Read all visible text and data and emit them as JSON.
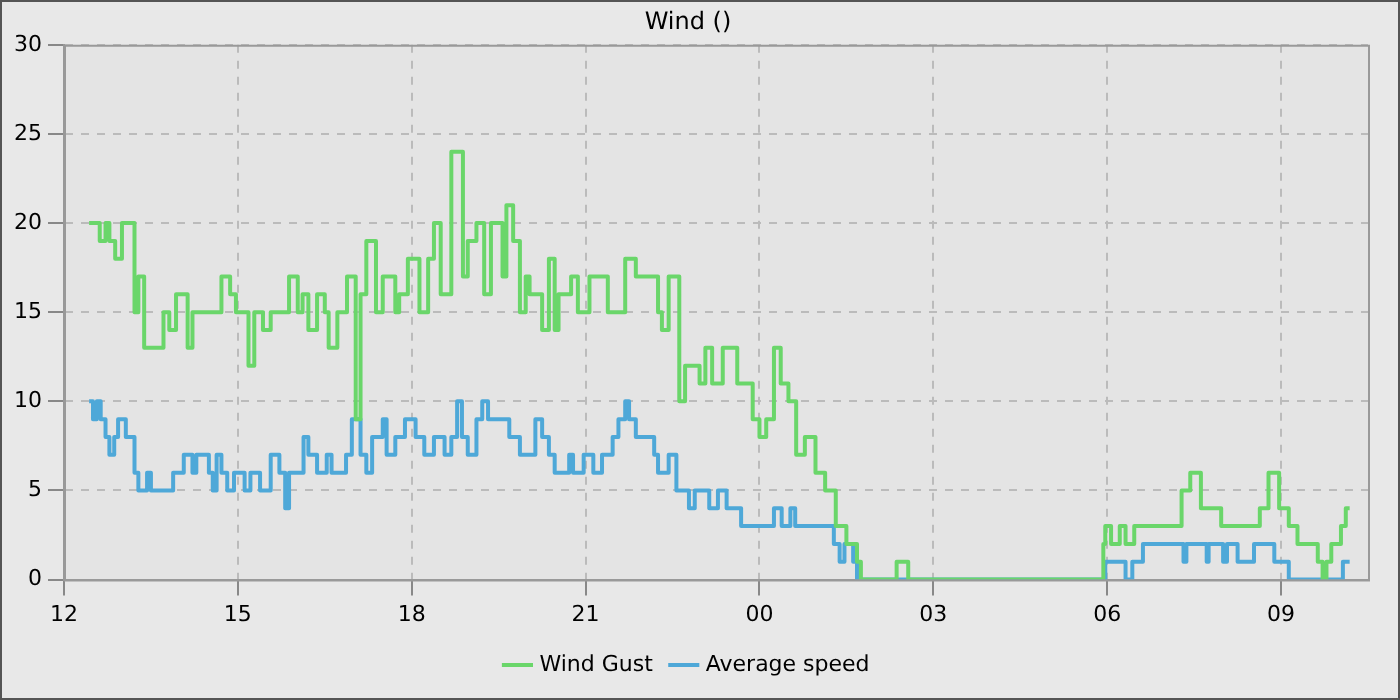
{
  "chart_data": {
    "type": "step",
    "title": "Wind ()",
    "xlim": [
      "--01-01T12:00",
      "--01-02T10:30"
    ],
    "ylim": [
      0,
      30
    ],
    "xticks": [
      {
        "value": "--01-01T12:00",
        "label": "12"
      },
      {
        "value": "--01-01T15:00",
        "label": "15"
      },
      {
        "value": "--01-01T18:00",
        "label": "18"
      },
      {
        "value": "--01-01T21:00",
        "label": "21"
      },
      {
        "value": "--01-02T00:00",
        "label": "00"
      },
      {
        "value": "--01-02T03:00",
        "label": "03"
      },
      {
        "value": "--01-02T06:00",
        "label": "06"
      },
      {
        "value": "--01-02T09:00",
        "label": "09"
      }
    ],
    "yticks": [
      0,
      5,
      10,
      15,
      20,
      25,
      30
    ],
    "grid": true,
    "legend": "bottom",
    "marker": "none",
    "line_style": "solid",
    "series": [
      {
        "name": "Wind Gust",
        "color": "#6ad66a",
        "x": [
          "--01-01T12:26",
          "--01-01T12:37",
          "--01-01T12:43",
          "--01-01T12:47",
          "--01-01T12:53",
          "--01-01T13:00",
          "--01-01T13:13",
          "--01-01T13:17",
          "--01-01T13:23",
          "--01-01T13:43",
          "--01-01T13:49",
          "--01-01T13:56",
          "--01-01T14:08",
          "--01-01T14:13",
          "--01-01T14:43",
          "--01-01T14:52",
          "--01-01T14:58",
          "--01-01T15:11",
          "--01-01T15:17",
          "--01-01T15:26",
          "--01-01T15:34",
          "--01-01T15:53",
          "--01-01T16:02",
          "--01-01T16:07",
          "--01-01T16:13",
          "--01-01T16:22",
          "--01-01T16:30",
          "--01-01T16:34",
          "--01-01T16:43",
          "--01-01T16:53",
          "--01-01T17:02",
          "--01-01T17:07",
          "--01-01T17:13",
          "--01-01T17:23",
          "--01-01T17:30",
          "--01-01T17:43",
          "--01-01T17:47",
          "--01-01T17:56",
          "--01-01T18:08",
          "--01-01T18:17",
          "--01-01T18:23",
          "--01-01T18:30",
          "--01-01T18:41",
          "--01-01T18:53",
          "--01-01T18:58",
          "--01-01T19:07",
          "--01-01T19:15",
          "--01-01T19:22",
          "--01-01T19:34",
          "--01-01T19:38",
          "--01-01T19:45",
          "--01-01T19:52",
          "--01-01T19:58",
          "--01-01T20:02",
          "--01-01T20:15",
          "--01-01T20:22",
          "--01-01T20:28",
          "--01-01T20:32",
          "--01-01T20:45",
          "--01-01T20:52",
          "--01-01T21:04",
          "--01-01T21:23",
          "--01-01T21:41",
          "--01-01T21:52",
          "--01-01T22:15",
          "--01-01T22:19",
          "--01-01T22:26",
          "--01-01T22:37",
          "--01-01T22:43",
          "--01-01T22:58",
          "--01-01T23:04",
          "--01-01T23:11",
          "--01-01T23:22",
          "--01-01T23:37",
          "--01-01T23:53",
          "--01-02T00:00",
          "--01-02T00:07",
          "--01-02T00:15",
          "--01-02T00:22",
          "--01-02T00:30",
          "--01-02T00:38",
          "--01-02T00:47",
          "--01-02T00:58",
          "--01-02T01:08",
          "--01-02T01:19",
          "--01-02T01:30",
          "--01-02T01:41",
          "--01-02T01:45",
          "--01-02T02:22",
          "--01-02T02:34",
          "--01-02T05:56",
          "--01-02T05:58",
          "--01-02T06:04",
          "--01-02T06:13",
          "--01-02T06:19",
          "--01-02T06:28",
          "--01-02T07:17",
          "--01-02T07:26",
          "--01-02T07:37",
          "--01-02T07:58",
          "--01-02T08:38",
          "--01-02T08:47",
          "--01-02T08:58",
          "--01-02T09:08",
          "--01-02T09:17",
          "--01-02T09:38",
          "--01-02T09:43",
          "--01-02T09:47",
          "--01-02T09:52",
          "--01-02T10:02",
          "--01-02T10:07",
          "--01-02T10:11"
        ],
        "values": [
          20,
          19,
          20,
          19,
          18,
          20,
          15,
          17,
          13,
          15,
          14,
          16,
          13,
          15,
          17,
          16,
          15,
          12,
          15,
          14,
          15,
          17,
          15,
          16,
          14,
          16,
          15,
          13,
          15,
          17,
          9,
          16,
          19,
          15,
          17,
          15,
          16,
          18,
          15,
          18,
          20,
          16,
          24,
          17,
          19,
          20,
          16,
          20,
          17,
          21,
          19,
          15,
          17,
          16,
          14,
          18,
          14,
          16,
          17,
          15,
          17,
          15,
          18,
          17,
          15,
          14,
          17,
          10,
          12,
          11,
          13,
          11,
          13,
          11,
          9,
          8,
          9,
          13,
          11,
          10,
          7,
          8,
          6,
          5,
          3,
          2,
          1,
          0,
          1,
          0,
          2,
          3,
          2,
          3,
          2,
          3,
          5,
          6,
          4,
          3,
          4,
          6,
          4,
          3,
          2,
          1,
          0,
          1,
          2,
          3,
          4,
          4
        ]
      },
      {
        "name": "Average speed",
        "color": "#4ea8d8",
        "x": [
          "--01-01T12:26",
          "--01-01T12:30",
          "--01-01T12:34",
          "--01-01T12:38",
          "--01-01T12:43",
          "--01-01T12:47",
          "--01-01T12:52",
          "--01-01T12:56",
          "--01-01T13:04",
          "--01-01T13:13",
          "--01-01T13:17",
          "--01-01T13:26",
          "--01-01T13:30",
          "--01-01T13:53",
          "--01-01T14:04",
          "--01-01T14:13",
          "--01-01T14:17",
          "--01-01T14:30",
          "--01-01T14:34",
          "--01-01T14:38",
          "--01-01T14:43",
          "--01-01T14:49",
          "--01-01T14:56",
          "--01-01T15:07",
          "--01-01T15:13",
          "--01-01T15:23",
          "--01-01T15:34",
          "--01-01T15:43",
          "--01-01T15:49",
          "--01-01T15:53",
          "--01-01T16:08",
          "--01-01T16:13",
          "--01-01T16:22",
          "--01-01T16:32",
          "--01-01T16:37",
          "--01-01T16:52",
          "--01-01T16:58",
          "--01-01T17:07",
          "--01-01T17:13",
          "--01-01T17:19",
          "--01-01T17:30",
          "--01-01T17:34",
          "--01-01T17:43",
          "--01-01T17:53",
          "--01-01T18:04",
          "--01-01T18:13",
          "--01-01T18:23",
          "--01-01T18:34",
          "--01-01T18:41",
          "--01-01T18:47",
          "--01-01T18:52",
          "--01-01T18:58",
          "--01-01T19:07",
          "--01-01T19:13",
          "--01-01T19:19",
          "--01-01T19:41",
          "--01-01T19:52",
          "--01-01T20:08",
          "--01-01T20:15",
          "--01-01T20:22",
          "--01-01T20:28",
          "--01-01T20:43",
          "--01-01T20:47",
          "--01-01T20:58",
          "--01-01T21:08",
          "--01-01T21:17",
          "--01-01T21:28",
          "--01-01T21:34",
          "--01-01T21:41",
          "--01-01T21:45",
          "--01-01T21:52",
          "--01-01T22:11",
          "--01-01T22:15",
          "--01-01T22:26",
          "--01-01T22:34",
          "--01-01T22:47",
          "--01-01T22:53",
          "--01-01T23:08",
          "--01-01T23:17",
          "--01-01T23:26",
          "--01-01T23:41",
          "--01-02T00:15",
          "--01-02T00:23",
          "--01-02T00:32",
          "--01-02T00:37",
          "--01-02T01:17",
          "--01-02T01:23",
          "--01-02T01:28",
          "--01-02T01:37",
          "--01-02T01:41",
          "--01-02T05:58",
          "--01-02T06:19",
          "--01-02T06:26",
          "--01-02T06:37",
          "--01-02T07:19",
          "--01-02T07:22",
          "--01-02T07:43",
          "--01-02T07:45",
          "--01-02T08:00",
          "--01-02T08:04",
          "--01-02T08:15",
          "--01-02T08:32",
          "--01-02T08:53",
          "--01-02T09:08",
          "--01-02T10:04",
          "--01-02T10:11"
        ],
        "values": [
          10,
          9,
          10,
          9,
          8,
          7,
          8,
          9,
          8,
          6,
          5,
          6,
          5,
          6,
          7,
          6,
          7,
          6,
          5,
          7,
          6,
          5,
          6,
          5,
          6,
          5,
          7,
          6,
          4,
          6,
          8,
          7,
          6,
          7,
          6,
          7,
          9,
          7,
          6,
          8,
          9,
          7,
          8,
          9,
          8,
          7,
          8,
          7,
          8,
          10,
          8,
          7,
          9,
          10,
          9,
          8,
          7,
          9,
          8,
          7,
          6,
          7,
          6,
          7,
          6,
          7,
          8,
          9,
          10,
          9,
          8,
          7,
          6,
          7,
          5,
          4,
          5,
          4,
          5,
          4,
          3,
          4,
          3,
          4,
          3,
          2,
          1,
          2,
          1,
          0,
          1,
          0,
          1,
          2,
          1,
          2,
          1,
          2,
          1,
          2,
          1,
          2,
          1,
          0,
          1,
          1
        ]
      }
    ]
  }
}
